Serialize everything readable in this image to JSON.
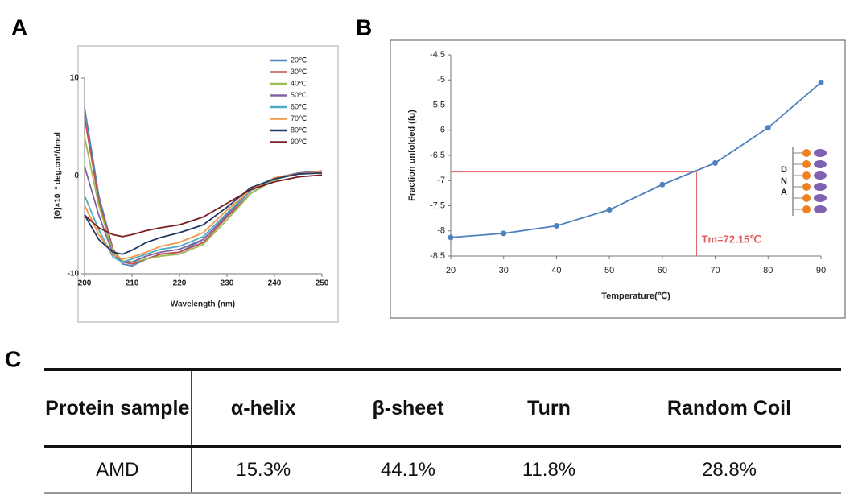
{
  "panels": [
    "A",
    "B",
    "C"
  ],
  "chart_data": [
    {
      "type": "line",
      "xlabel": "Wavelength (nm)",
      "ylabel": "[Θ]×10⁻³ deg.cm²/dmol",
      "x": [
        200,
        203,
        206,
        208,
        210,
        213,
        216,
        220,
        225,
        230,
        235,
        240,
        245,
        250
      ],
      "xlim": [
        200,
        250
      ],
      "xticks": [
        200,
        210,
        220,
        230,
        240,
        250
      ],
      "ylim": [
        -10,
        10
      ],
      "yticks": [
        -10,
        0,
        10
      ],
      "legend": "upper right",
      "series": [
        {
          "name": "20℃",
          "color": "#4f81bd",
          "values": [
            7,
            -2,
            -7.5,
            -9,
            -9.2,
            -8.5,
            -8,
            -7.8,
            -6.5,
            -4,
            -1.5,
            -0.3,
            0.2,
            0.4
          ]
        },
        {
          "name": "30℃",
          "color": "#c0504d",
          "values": [
            6,
            -2.5,
            -7.5,
            -8.8,
            -9,
            -8.5,
            -8,
            -7.8,
            -6.8,
            -4.2,
            -1.8,
            -0.3,
            0.2,
            0.4
          ]
        },
        {
          "name": "40℃",
          "color": "#9bbb59",
          "values": [
            4,
            -3,
            -7.8,
            -8.7,
            -8.8,
            -8.5,
            -8.2,
            -8,
            -7,
            -4.5,
            -1.8,
            -0.4,
            0.3,
            0.5
          ]
        },
        {
          "name": "50℃",
          "color": "#8064a2",
          "values": [
            1,
            -4,
            -8,
            -8.8,
            -8.8,
            -8.2,
            -7.8,
            -7.5,
            -6.5,
            -4,
            -1.5,
            -0.2,
            0.3,
            0.5
          ]
        },
        {
          "name": "60℃",
          "color": "#4bacc6",
          "values": [
            -2,
            -5.5,
            -8.3,
            -8.8,
            -8.5,
            -8,
            -7.5,
            -7.2,
            -6.2,
            -3.8,
            -1.5,
            -0.3,
            0.2,
            0.4
          ]
        },
        {
          "name": "70℃",
          "color": "#f79646",
          "values": [
            -3,
            -6,
            -8,
            -8.5,
            -8.3,
            -7.8,
            -7.2,
            -6.8,
            -5.8,
            -3.5,
            -1.4,
            -0.2,
            0.2,
            0.4
          ]
        },
        {
          "name": "80℃",
          "color": "#1f3864",
          "values": [
            -4,
            -6.5,
            -7.8,
            -8,
            -7.6,
            -6.8,
            -6.3,
            -5.8,
            -5,
            -3.2,
            -1.2,
            -0.3,
            0.2,
            0.3
          ]
        },
        {
          "name": "90℃",
          "color": "#7b2020",
          "values": [
            -4,
            -5.3,
            -6,
            -6.2,
            -6,
            -5.6,
            -5.3,
            -5,
            -4.2,
            -2.8,
            -1.4,
            -0.6,
            -0.1,
            0.1
          ]
        }
      ]
    },
    {
      "type": "line",
      "markers": true,
      "xlabel": "Temperature(℃)",
      "ylabel": "Fraction unfolded (fu)",
      "x": [
        20,
        30,
        40,
        50,
        60,
        70,
        80,
        90
      ],
      "xlim": [
        20,
        90
      ],
      "xticks": [
        20,
        30,
        40,
        50,
        60,
        70,
        80,
        90
      ],
      "ylim": [
        -8.5,
        -4.5
      ],
      "yticks": [
        -8.5,
        -8,
        -7.5,
        -7,
        -6.5,
        -6,
        -5.5,
        -5,
        -4.5
      ],
      "series": [
        {
          "color": "#4f81bd",
          "values": [
            -8.13,
            -8.05,
            -7.9,
            -7.58,
            -7.08,
            -6.65,
            -5.95,
            -5.05
          ]
        }
      ],
      "reference_lines": {
        "x": 66.5,
        "y": -6.83,
        "color": "#e06060"
      },
      "annotation": "Tm=72.15℃",
      "inset_labels": [
        "D",
        "N",
        "A"
      ]
    }
  ],
  "table": {
    "header": [
      "Protein sample",
      "α-helix",
      "β-sheet",
      "Turn",
      "Random Coil"
    ],
    "rows": [
      [
        "AMD",
        "15.3%",
        "44.1%",
        "11.8%",
        "28.8%"
      ]
    ]
  }
}
